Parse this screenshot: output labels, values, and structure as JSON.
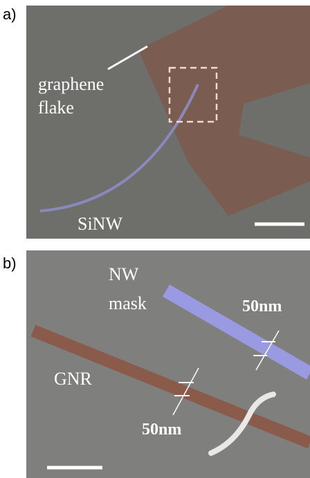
{
  "panels": [
    {
      "label": "a)",
      "annotations": [
        "graphene",
        "flake",
        "SiNW"
      ]
    },
    {
      "label": "b)",
      "annotations": [
        "NW",
        "mask",
        "50nm",
        "GNR",
        "50nm"
      ]
    }
  ]
}
